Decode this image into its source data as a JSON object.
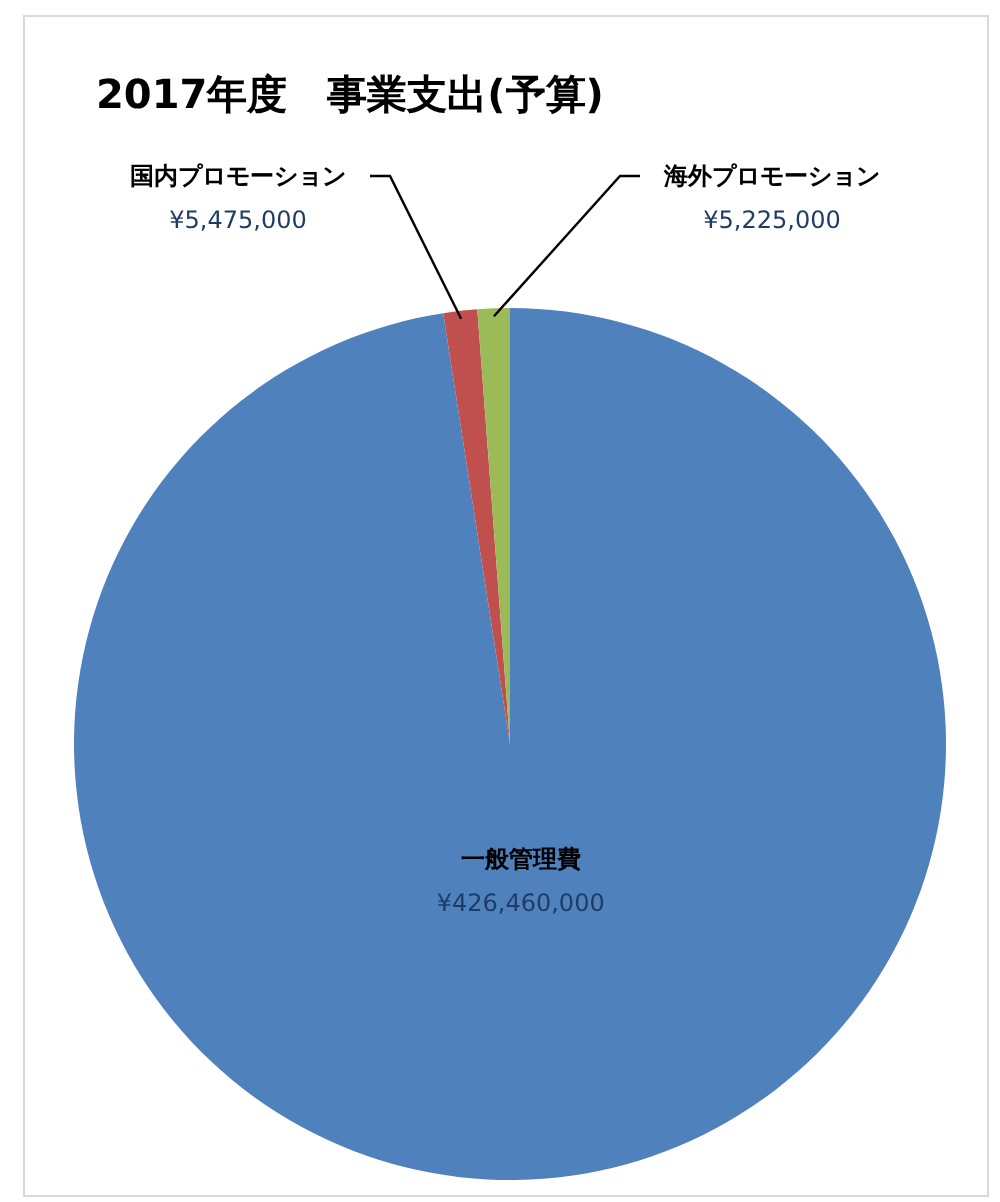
{
  "chart_data": {
    "type": "pie",
    "title": "2017年度　事業支出(予算)",
    "categories": [
      "一般管理費",
      "国内プロモーション",
      "海外プロモーション"
    ],
    "values": [
      426460000,
      5475000,
      5225000
    ],
    "colors": [
      "#4f81bd",
      "#c0504d",
      "#9bbb59"
    ],
    "value_labels": [
      "¥426,460,000",
      "¥5,475,000",
      "¥5,225,000"
    ]
  }
}
